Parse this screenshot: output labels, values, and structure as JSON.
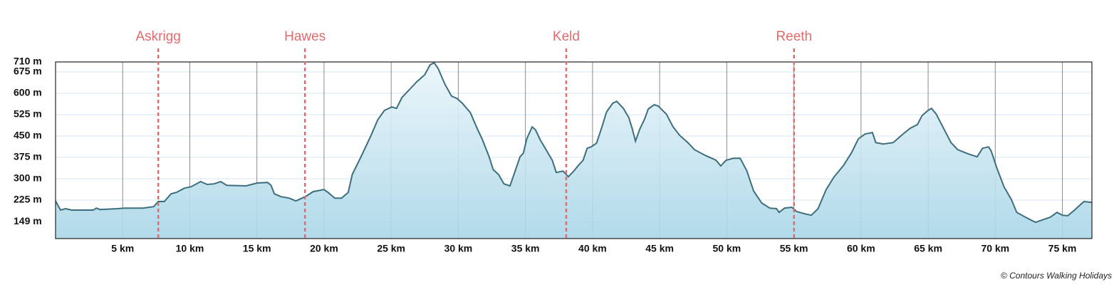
{
  "chart_data": {
    "type": "area",
    "x": [
      0,
      0.37,
      0.74,
      1.2,
      2.8,
      3.05,
      3.3,
      4.6,
      5.15,
      5.7,
      6.5,
      7.3,
      7.65,
      8.1,
      8.6,
      9.0,
      9.6,
      10.1,
      10.8,
      11.3,
      11.8,
      12.3,
      12.75,
      14.2,
      15,
      15.8,
      16.05,
      16.3,
      16.8,
      17.4,
      17.9,
      18.6,
      19.2,
      20,
      20.3,
      20.8,
      21.3,
      21.8,
      22.1,
      22.7,
      23.5,
      24,
      24.5,
      25.05,
      25.4,
      25.8,
      26.4,
      26.9,
      27.5,
      27.9,
      28.2,
      28.5,
      29,
      29.5,
      29.9,
      30.3,
      30.9,
      31.4,
      31.8,
      32.3,
      32.6,
      33,
      33.4,
      33.85,
      34.2,
      34.6,
      34.85,
      35.1,
      35.5,
      35.75,
      36.1,
      36.6,
      37,
      37.3,
      37.8,
      38.2,
      38.6,
      38.95,
      39.3,
      39.6,
      39.9,
      40.3,
      40.7,
      41.05,
      41.5,
      41.8,
      42.3,
      42.7,
      42.95,
      43.2,
      43.5,
      43.9,
      44.15,
      44.6,
      44.9,
      45.5,
      46,
      46.5,
      47.1,
      47.6,
      48.4,
      49.2,
      49.55,
      49.95,
      50.5,
      51,
      51.5,
      52,
      52.6,
      53.2,
      53.7,
      53.9,
      54.3,
      54.85,
      55.2,
      55.8,
      56.3,
      56.8,
      57.4,
      58,
      58.7,
      59.3,
      59.8,
      60.3,
      60.85,
      61.1,
      61.65,
      62.4,
      63,
      63.65,
      64.2,
      64.55,
      65,
      65.25,
      65.6,
      66.15,
      66.7,
      67.2,
      68,
      68.65,
      69.05,
      69.5,
      69.7,
      70.1,
      70.65,
      71.2,
      71.6,
      72.25,
      73,
      73.6,
      74.1,
      74.6,
      75,
      75.4,
      75.9,
      76.6,
      77.2
    ],
    "values": [
      222,
      190,
      195,
      190,
      190,
      197,
      192,
      195,
      197,
      197,
      197,
      202,
      220,
      220,
      247,
      252,
      267,
      272,
      290,
      280,
      282,
      290,
      277,
      275,
      285,
      287,
      277,
      247,
      237,
      232,
      222,
      237,
      255,
      262,
      252,
      232,
      232,
      252,
      315,
      372,
      452,
      507,
      540,
      552,
      547,
      585,
      615,
      640,
      665,
      700,
      707,
      687,
      632,
      590,
      582,
      565,
      532,
      477,
      437,
      377,
      332,
      315,
      282,
      275,
      322,
      377,
      390,
      440,
      482,
      472,
      437,
      397,
      365,
      322,
      327,
      307,
      327,
      347,
      365,
      407,
      412,
      425,
      482,
      535,
      565,
      572,
      547,
      515,
      477,
      432,
      472,
      512,
      545,
      560,
      555,
      527,
      482,
      452,
      427,
      402,
      382,
      365,
      345,
      365,
      372,
      372,
      327,
      257,
      215,
      197,
      195,
      182,
      197,
      200,
      185,
      177,
      172,
      195,
      262,
      307,
      347,
      392,
      440,
      457,
      462,
      427,
      422,
      427,
      452,
      477,
      490,
      522,
      540,
      547,
      527,
      477,
      427,
      402,
      387,
      377,
      407,
      412,
      397,
      340,
      272,
      227,
      182,
      165,
      147,
      157,
      165,
      182,
      172,
      170,
      190,
      220,
      217
    ],
    "color": "#3d6e7d",
    "xlim": [
      0,
      77.2
    ],
    "ylim": [
      90,
      710
    ],
    "xticks": [
      {
        "value": 5,
        "label": "5 km"
      },
      {
        "value": 10,
        "label": "10 km"
      },
      {
        "value": 15,
        "label": "15 km"
      },
      {
        "value": 20,
        "label": "20 km"
      },
      {
        "value": 25,
        "label": "25 km"
      },
      {
        "value": 30,
        "label": "30 km"
      },
      {
        "value": 35,
        "label": "35 km"
      },
      {
        "value": 40,
        "label": "40 km"
      },
      {
        "value": 45,
        "label": "45 km"
      },
      {
        "value": 50,
        "label": "50 km"
      },
      {
        "value": 55,
        "label": "55 km"
      },
      {
        "value": 60,
        "label": "60 km"
      },
      {
        "value": 65,
        "label": "65 km"
      },
      {
        "value": 70,
        "label": "70 km"
      },
      {
        "value": 75,
        "label": "75 km"
      }
    ],
    "yticks": [
      {
        "value": 149,
        "label": "149 m"
      },
      {
        "value": 225,
        "label": "225 m"
      },
      {
        "value": 300,
        "label": "300 m"
      },
      {
        "value": 375,
        "label": "375 m"
      },
      {
        "value": 450,
        "label": "450 m"
      },
      {
        "value": 525,
        "label": "525 m"
      },
      {
        "value": 600,
        "label": "600 m"
      },
      {
        "value": 675,
        "label": "675 m"
      },
      {
        "value": 710,
        "label": "710 m"
      }
    ],
    "grid": true,
    "markers": [
      {
        "label": "Askrigg",
        "x": 7.65
      },
      {
        "label": "Hawes",
        "x": 18.58
      },
      {
        "label": "Keld",
        "x": 38.04
      },
      {
        "label": "Reeth",
        "x": 55.01
      }
    ],
    "marker_color": "#e36a6a",
    "credit": "© Contours Walking Holidays"
  }
}
